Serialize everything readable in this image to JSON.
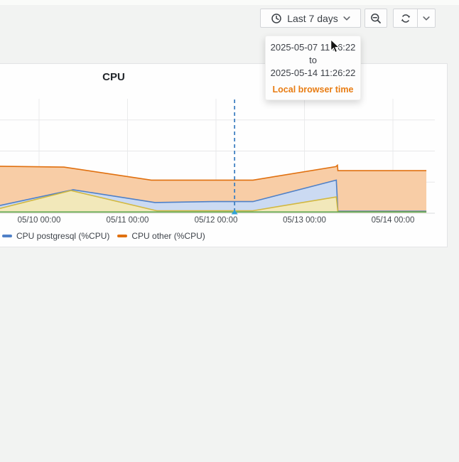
{
  "toolbar": {
    "time_range_label": "Last 7 days",
    "icons": {
      "time_picker": "clock-icon",
      "zoom_out": "search-minus-icon",
      "refresh": "sync-icon",
      "dropdown": "chevron-down-icon"
    }
  },
  "tooltip": {
    "from": "2025-05-07 11:26:22",
    "separator": "to",
    "to": "2025-05-14 11:26:22",
    "footer": "Local browser time",
    "footer_color": "#e87c12"
  },
  "panel": {
    "title": "CPU"
  },
  "chart_data": {
    "type": "area",
    "stacked": true,
    "title": "CPU",
    "units": "%CPU",
    "grid": true,
    "legend_position": "bottom-left",
    "x_ticks": [
      "05/10 00:00",
      "05/11 00:00",
      "05/12 00:00",
      "05/13 00:00",
      "05/14 00:00"
    ],
    "x_range_days": [
      -0.442,
      4.475
    ],
    "ylim": [
      0,
      73.6
    ],
    "y_axis_labels_visible": false,
    "y_gridline_values": [
      20,
      40,
      60
    ],
    "crosshair_day_offset": 2.21,
    "legend": [
      {
        "label": "CPU postgresql (%CPU)",
        "color": "#4f80c7"
      },
      {
        "label": "CPU other (%CPU)",
        "color": "#e0700f"
      }
    ],
    "series": [
      {
        "name": "CPU other (%CPU)",
        "color": "#e0700f",
        "fill": "#f8cda6",
        "points": [
          [
            -0.442,
            30.2
          ],
          [
            0.281,
            29.7
          ],
          [
            1.269,
            21.3
          ],
          [
            2.418,
            21.3
          ],
          [
            3.355,
            30.0
          ],
          [
            3.373,
            30.9
          ],
          [
            3.378,
            27.4
          ],
          [
            4.378,
            27.4
          ]
        ]
      },
      {
        "name": "CPU postgresql (%CPU)",
        "color": "#4f80c7",
        "fill": "#cbdaf2",
        "points": [
          [
            -0.442,
            5.0
          ],
          [
            0.385,
            15.1
          ],
          [
            1.31,
            6.9
          ],
          [
            1.97,
            7.5
          ],
          [
            2.418,
            7.5
          ],
          [
            3.36,
            21.3
          ],
          [
            3.378,
            1.3
          ],
          [
            4.378,
            1.3
          ]
        ]
      },
      {
        "name": "unlabeled_yellow_series",
        "color": "#d2b840",
        "fill": "#f2e8ba",
        "points": [
          [
            -0.442,
            3.1
          ],
          [
            0.361,
            14.6
          ],
          [
            1.329,
            1.6
          ],
          [
            2.418,
            1.6
          ],
          [
            3.36,
            10.5
          ],
          [
            3.378,
            0.9
          ],
          [
            4.378,
            0.9
          ]
        ]
      },
      {
        "name": "unlabeled_green_series",
        "color": "#57a54f",
        "fill": null,
        "points": [
          [
            -0.442,
            0.8
          ],
          [
            4.378,
            0.8
          ]
        ]
      }
    ]
  }
}
